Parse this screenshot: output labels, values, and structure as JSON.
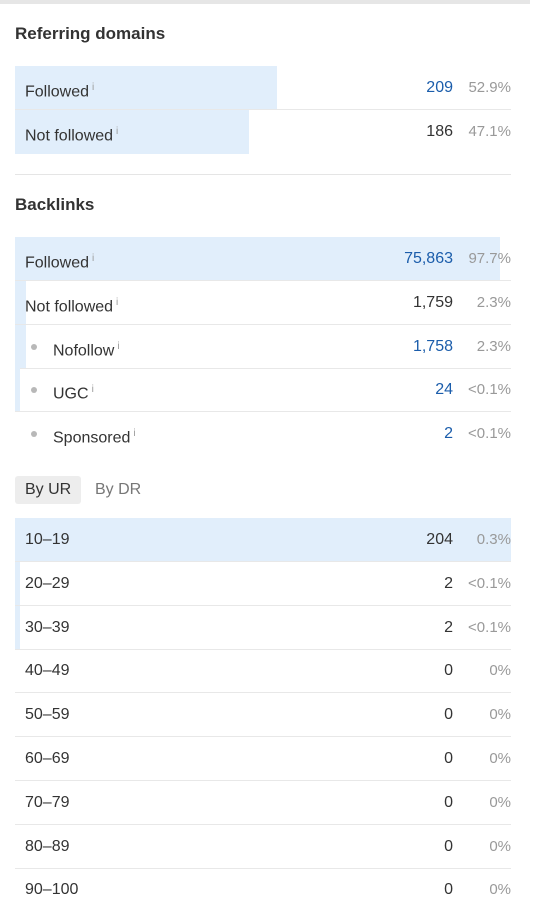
{
  "referring_domains": {
    "title": "Referring domains",
    "rows": [
      {
        "label": "Followed",
        "info": "i",
        "value": "209",
        "percent": "52.9%",
        "share": 0.529,
        "link": true
      },
      {
        "label": "Not followed",
        "info": "i",
        "value": "186",
        "percent": "47.1%",
        "share": 0.471,
        "link": false
      }
    ]
  },
  "backlinks": {
    "title": "Backlinks",
    "rows": [
      {
        "label": "Followed",
        "info": "i",
        "value": "75,863",
        "percent": "97.7%",
        "share": 0.977,
        "link": true,
        "sub": false
      },
      {
        "label": "Not followed",
        "info": "i",
        "value": "1,759",
        "percent": "2.3%",
        "share": 0.023,
        "link": false,
        "sub": false
      },
      {
        "label": "Nofollow",
        "info": "i",
        "value": "1,758",
        "percent": "2.3%",
        "share": 0.023,
        "link": true,
        "sub": true
      },
      {
        "label": "UGC",
        "info": "i",
        "value": "24",
        "percent": "<0.1%",
        "share": 0.001,
        "link": true,
        "sub": true
      },
      {
        "label": "Sponsored",
        "info": "i",
        "value": "2",
        "percent": "<0.1%",
        "share": 0.0,
        "link": true,
        "sub": true
      }
    ]
  },
  "tabs": {
    "by_ur": "By UR",
    "by_dr": "By DR",
    "active": "by_ur"
  },
  "ur_distribution": [
    {
      "range": "10–19",
      "value": "204",
      "percent": "0.3%",
      "share": 1.0
    },
    {
      "range": "20–29",
      "value": "2",
      "percent": "<0.1%",
      "share": 0.01
    },
    {
      "range": "30–39",
      "value": "2",
      "percent": "<0.1%",
      "share": 0.01
    },
    {
      "range": "40–49",
      "value": "0",
      "percent": "0%",
      "share": 0
    },
    {
      "range": "50–59",
      "value": "0",
      "percent": "0%",
      "share": 0
    },
    {
      "range": "60–69",
      "value": "0",
      "percent": "0%",
      "share": 0
    },
    {
      "range": "70–79",
      "value": "0",
      "percent": "0%",
      "share": 0
    },
    {
      "range": "80–89",
      "value": "0",
      "percent": "0%",
      "share": 0
    },
    {
      "range": "90–100",
      "value": "0",
      "percent": "0%",
      "share": 0
    }
  ]
}
